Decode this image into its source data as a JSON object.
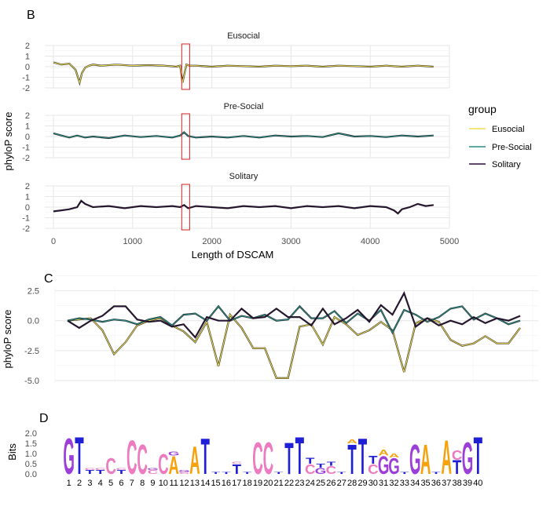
{
  "chart_data": [
    {
      "panel_label": "B",
      "type": "line",
      "facets": [
        "Eusocial",
        "Pre-Social",
        "Solitary"
      ],
      "xlabel": "Length of DSCAM",
      "ylabel": "phyloP score",
      "xlim": [
        0,
        5000
      ],
      "ylim": [
        -2,
        2
      ],
      "xticks": [
        "0",
        "1000",
        "2000",
        "3000",
        "4000",
        "5000"
      ],
      "yticks": [
        "2",
        "1",
        "0",
        "-1",
        "-2"
      ],
      "highlight_region": [
        1620,
        1720
      ],
      "legend": {
        "title": "group",
        "position": "right",
        "entries": [
          "Eusocial",
          "Pre-Social",
          "Solitary"
        ]
      },
      "series": [
        {
          "name": "Eusocial",
          "color": "#f0dd52",
          "x": [
            0,
            100,
            200,
            280,
            330,
            360,
            400,
            450,
            500,
            600,
            800,
            1000,
            1200,
            1400,
            1550,
            1600,
            1630,
            1650,
            1680,
            1720,
            1800,
            2000,
            2200,
            2400,
            2600,
            2800,
            3000,
            3200,
            3400,
            3600,
            3800,
            4000,
            4200,
            4400,
            4600,
            4800
          ],
          "y": [
            0.4,
            0.2,
            0.3,
            -0.3,
            -1.5,
            -0.6,
            -0.1,
            0.1,
            0.2,
            0.1,
            0.2,
            0.1,
            0.15,
            0.1,
            0.0,
            0.1,
            -1.5,
            -0.8,
            0.2,
            0.1,
            0.1,
            0.0,
            0.1,
            0.05,
            0.0,
            0.1,
            0.05,
            0.1,
            0.0,
            0.1,
            0.05,
            0.0,
            0.1,
            0.0,
            0.1,
            0.0
          ]
        },
        {
          "name": "Pre-Social",
          "color": "#2a8c87",
          "x": [
            0,
            100,
            200,
            300,
            400,
            500,
            700,
            900,
            1100,
            1300,
            1500,
            1600,
            1650,
            1700,
            1800,
            2000,
            2200,
            2400,
            2600,
            2800,
            3000,
            3200,
            3400,
            3600,
            3800,
            4000,
            4200,
            4400,
            4600,
            4800
          ],
          "y": [
            0.3,
            0.1,
            -0.1,
            0.1,
            -0.1,
            0.0,
            -0.15,
            0.1,
            -0.05,
            0.05,
            -0.1,
            0.1,
            0.4,
            0.05,
            -0.1,
            0.0,
            -0.1,
            0.05,
            -0.1,
            0.1,
            0.0,
            0.05,
            -0.05,
            0.3,
            0.0,
            0.05,
            -0.05,
            0.1,
            0.0,
            0.1
          ]
        },
        {
          "name": "Solitary",
          "color": "#2b0f3a",
          "x": [
            0,
            100,
            200,
            300,
            350,
            400,
            500,
            700,
            900,
            1100,
            1300,
            1500,
            1600,
            1650,
            1700,
            1800,
            2000,
            2200,
            2400,
            2600,
            2800,
            3000,
            3200,
            3400,
            3600,
            3800,
            4000,
            4200,
            4300,
            4350,
            4400,
            4500,
            4600,
            4700,
            4800
          ],
          "y": [
            -0.4,
            -0.3,
            -0.2,
            0.0,
            0.6,
            0.3,
            0.0,
            0.1,
            -0.1,
            0.1,
            0.0,
            0.1,
            0.0,
            0.2,
            -0.1,
            0.1,
            0.0,
            -0.1,
            0.1,
            0.0,
            0.1,
            -0.1,
            0.1,
            0.0,
            0.1,
            -0.1,
            0.1,
            0.0,
            -0.3,
            -0.6,
            -0.2,
            0.0,
            0.3,
            0.1,
            0.2
          ]
        }
      ]
    },
    {
      "panel_label": "C",
      "type": "line",
      "ylabel": "phyloP score",
      "xlim": [
        1,
        40
      ],
      "ylim": [
        -5.2,
        2.8
      ],
      "yticks": [
        "2.5",
        "0.0",
        "-2.5",
        "-5.0"
      ],
      "series": [
        {
          "name": "Eusocial",
          "color": "#f0dd52",
          "y": [
            0.0,
            0.1,
            0.2,
            -0.8,
            -2.8,
            -1.8,
            -0.4,
            0.0,
            0.2,
            -0.4,
            -0.9,
            -1.8,
            -0.1,
            -3.8,
            0.5,
            -0.6,
            -2.3,
            -2.3,
            -4.8,
            -4.8,
            -0.5,
            -0.3,
            -2.0,
            0.3,
            -0.3,
            -1.2,
            -0.8,
            -0.1,
            -0.8,
            -4.3,
            -0.2,
            0.2,
            -0.1,
            -1.6,
            -2.1,
            -1.9,
            -1.3,
            -1.9,
            -1.9,
            -0.6
          ]
        },
        {
          "name": "Pre-Social",
          "color": "#2a8c87",
          "y": [
            0.0,
            0.2,
            0.1,
            -0.1,
            0.1,
            0.0,
            -0.3,
            0.1,
            0.3,
            -0.4,
            0.5,
            0.6,
            0.0,
            1.2,
            0.0,
            0.4,
            0.2,
            0.5,
            0.0,
            0.1,
            1.2,
            0.2,
            0.2,
            0.8,
            -0.2,
            0.6,
            0.0,
            0.9,
            -1.0,
            0.9,
            0.5,
            -0.1,
            0.3,
            1.0,
            1.2,
            0.1,
            0.6,
            0.2,
            -0.3,
            0.0
          ]
        },
        {
          "name": "Solitary",
          "color": "#2b0f3a",
          "y": [
            0.0,
            -0.6,
            0.0,
            0.4,
            1.2,
            1.2,
            0.1,
            -0.1,
            0.0,
            -0.5,
            -0.3,
            -1.4,
            0.3,
            0.0,
            0.0,
            1.0,
            0.2,
            0.3,
            1.0,
            0.3,
            0.3,
            -0.4,
            1.0,
            -0.3,
            0.2,
            0.9,
            -0.1,
            1.3,
            0.5,
            2.3,
            -0.5,
            0.2,
            -0.4,
            0.0,
            -0.3,
            0.3,
            -0.2,
            0.2,
            0.0,
            0.4
          ]
        }
      ]
    },
    {
      "panel_label": "D",
      "type": "sequence-logo",
      "ylabel": "Bits",
      "ylim": [
        0,
        2.0
      ],
      "yticks": [
        "2.0",
        "1.5",
        "1.0",
        "0.5",
        "0.0"
      ],
      "positions": [
        "1",
        "2",
        "3",
        "4",
        "5",
        "6",
        "7",
        "8",
        "9",
        "10",
        "11",
        "12",
        "13",
        "14",
        "15",
        "16",
        "17",
        "18",
        "19",
        "20",
        "21",
        "22",
        "23",
        "24",
        "25",
        "26",
        "27",
        "28",
        "29",
        "30",
        "31",
        "32",
        "33",
        "34",
        "35",
        "36",
        "37",
        "38",
        "39",
        "40"
      ],
      "letter_colors": {
        "A": "#f5a20c",
        "C": "#ec7bbf",
        "G": "#9b3fd8",
        "T": "#1f1fd6"
      },
      "stacks": [
        [
          {
            "l": "G",
            "h": 1.8
          }
        ],
        [
          {
            "l": "T",
            "h": 1.9
          }
        ],
        [
          {
            "l": "T",
            "h": 0.2
          },
          {
            "l": "C",
            "h": 0.1
          }
        ],
        [
          {
            "l": "T",
            "h": 0.2
          },
          {
            "l": "C",
            "h": 0.1
          }
        ],
        [
          {
            "l": "C",
            "h": 0.8
          }
        ],
        [
          {
            "l": "T",
            "h": 0.2
          },
          {
            "l": "C",
            "h": 0.1
          }
        ],
        [
          {
            "l": "C",
            "h": 1.7
          }
        ],
        [
          {
            "l": "C",
            "h": 1.5
          }
        ],
        [
          {
            "l": "C",
            "h": 0.2
          },
          {
            "l": "G",
            "h": 0.1
          }
        ],
        [
          {
            "l": "C",
            "h": 1.0
          }
        ],
        [
          {
            "l": "A",
            "h": 0.9
          },
          {
            "l": "G",
            "h": 0.2
          }
        ],
        [
          {
            "l": "C",
            "h": 0.1
          },
          {
            "l": "G",
            "h": 0.1
          }
        ],
        [
          {
            "l": "A",
            "h": 1.4
          }
        ],
        [
          {
            "l": "T",
            "h": 1.8
          }
        ],
        [
          {
            "l": "T",
            "h": 0.1
          }
        ],
        [
          {
            "l": "T",
            "h": 0.1
          }
        ],
        [
          {
            "l": "T",
            "h": 0.5
          },
          {
            "l": "C",
            "h": 0.1
          }
        ],
        [
          {
            "l": "T",
            "h": 0.1
          }
        ],
        [
          {
            "l": "C",
            "h": 1.6
          }
        ],
        [
          {
            "l": "C",
            "h": 1.6
          }
        ],
        [
          {
            "l": "T",
            "h": 0.1
          }
        ],
        [
          {
            "l": "T",
            "h": 1.6
          }
        ],
        [
          {
            "l": "T",
            "h": 1.9
          }
        ],
        [
          {
            "l": "C",
            "h": 0.5
          },
          {
            "l": "T",
            "h": 0.3
          }
        ],
        [
          {
            "l": "G",
            "h": 0.3
          },
          {
            "l": "T",
            "h": 0.2
          }
        ],
        [
          {
            "l": "C",
            "h": 0.4
          },
          {
            "l": "T",
            "h": 0.2
          }
        ],
        [
          {
            "l": "T",
            "h": 0.1
          }
        ],
        [
          {
            "l": "T",
            "h": 1.5
          },
          {
            "l": "A",
            "h": 0.2
          }
        ],
        [
          {
            "l": "T",
            "h": 1.8
          }
        ],
        [
          {
            "l": "C",
            "h": 0.5
          },
          {
            "l": "T",
            "h": 0.4
          }
        ],
        [
          {
            "l": "G",
            "h": 0.9
          },
          {
            "l": "A",
            "h": 0.3
          }
        ],
        [
          {
            "l": "G",
            "h": 0.8
          },
          {
            "l": "A",
            "h": 0.2
          }
        ],
        [
          {
            "l": "T",
            "h": 0.1
          }
        ],
        [
          {
            "l": "G",
            "h": 1.5
          }
        ],
        [
          {
            "l": "A",
            "h": 1.5
          }
        ],
        [
          {
            "l": "T",
            "h": 0.1
          }
        ],
        [
          {
            "l": "A",
            "h": 1.7
          }
        ],
        [
          {
            "l": "T",
            "h": 0.7
          },
          {
            "l": "C",
            "h": 0.5
          }
        ],
        [
          {
            "l": "G",
            "h": 1.6
          }
        ],
        [
          {
            "l": "T",
            "h": 1.9
          }
        ]
      ]
    }
  ]
}
